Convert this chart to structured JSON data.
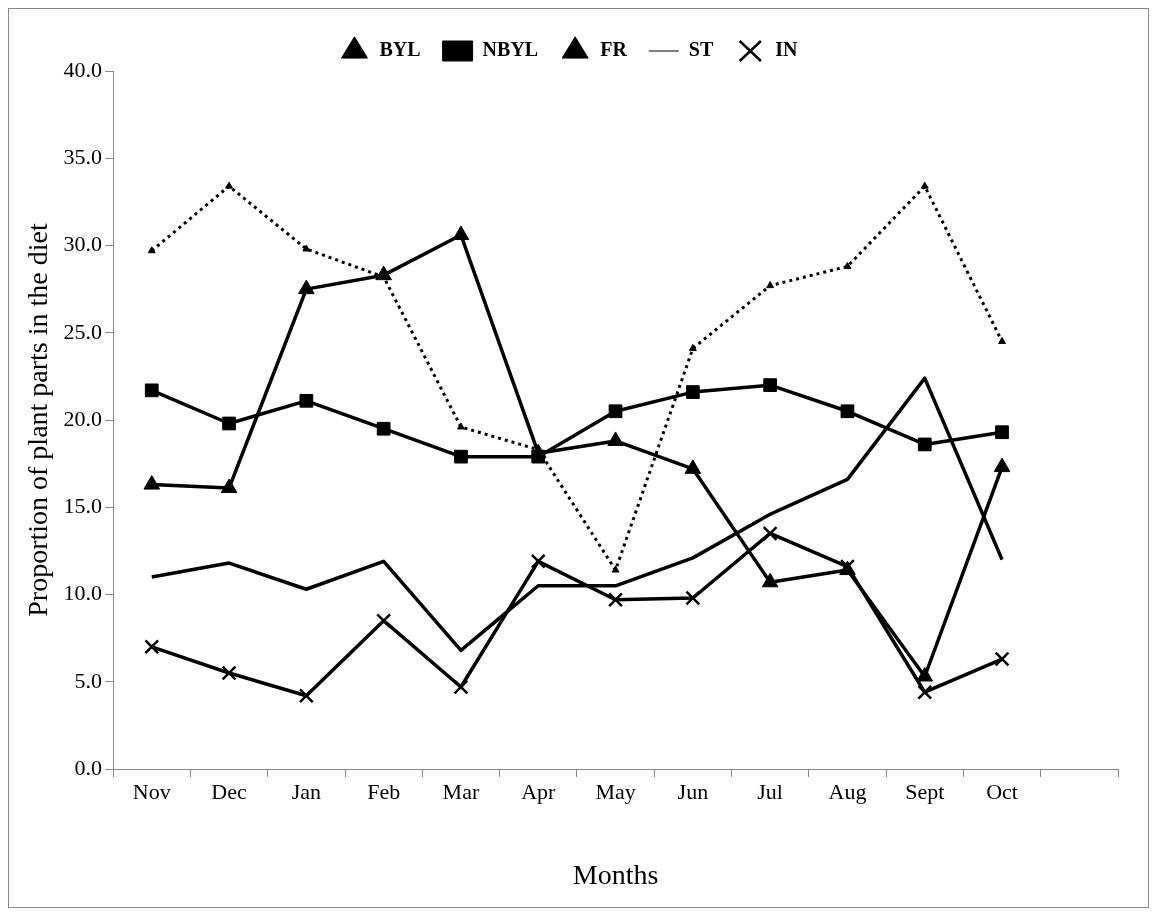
{
  "chart_data": {
    "type": "line",
    "xlabel": "Months",
    "ylabel": "Proportion of plant parts in the diet",
    "categories": [
      "Nov",
      "Dec",
      "Jan",
      "Feb",
      "Mar",
      "Apr",
      "May",
      "Jun",
      "Jul",
      "Aug",
      "Sept",
      "Oct",
      null
    ],
    "series": [
      {
        "name": "BYL",
        "color": "#000000",
        "marker": "triangle",
        "line_style": "dotted",
        "values": [
          29.7,
          33.4,
          29.8,
          28.2,
          19.6,
          18.3,
          11.4,
          24.1,
          27.7,
          28.8,
          33.4,
          24.5,
          null
        ]
      },
      {
        "name": "NBYL",
        "color": "#000000",
        "marker": "square",
        "line_style": "solid",
        "values": [
          21.7,
          19.8,
          21.1,
          19.5,
          17.9,
          17.9,
          20.5,
          21.6,
          22.0,
          20.5,
          18.6,
          19.3,
          null
        ]
      },
      {
        "name": "FR",
        "color": "#000000",
        "marker": "triangle",
        "line_style": "solid",
        "values": [
          16.3,
          16.1,
          27.5,
          28.3,
          30.6,
          18.1,
          18.8,
          17.2,
          10.7,
          11.4,
          5.3,
          17.3,
          null
        ]
      },
      {
        "name": "ST",
        "color": "#000000",
        "marker": "none",
        "line_style": "solid",
        "values": [
          11.0,
          11.8,
          10.3,
          11.9,
          6.8,
          10.5,
          10.5,
          12.1,
          14.6,
          16.6,
          22.4,
          12.0,
          null
        ]
      },
      {
        "name": "IN",
        "color": "#000000",
        "marker": "cross",
        "line_style": "solid",
        "values": [
          7.0,
          5.5,
          4.2,
          8.5,
          4.7,
          11.9,
          9.7,
          9.8,
          13.5,
          11.6,
          4.4,
          6.3,
          null
        ]
      }
    ],
    "ylim": [
      0,
      40
    ],
    "yticks": [
      {
        "value": 0,
        "label": "0.0"
      },
      {
        "value": 5,
        "label": "5.0"
      },
      {
        "value": 10,
        "label": "10.0"
      },
      {
        "value": 15,
        "label": "15.0"
      },
      {
        "value": 20,
        "label": "20.0"
      },
      {
        "value": 25,
        "label": "25.0"
      },
      {
        "value": 30,
        "label": "30.0"
      },
      {
        "value": 35,
        "label": "35.0"
      },
      {
        "value": 40,
        "label": "40.0"
      }
    ],
    "grid": false,
    "legend": "top"
  }
}
